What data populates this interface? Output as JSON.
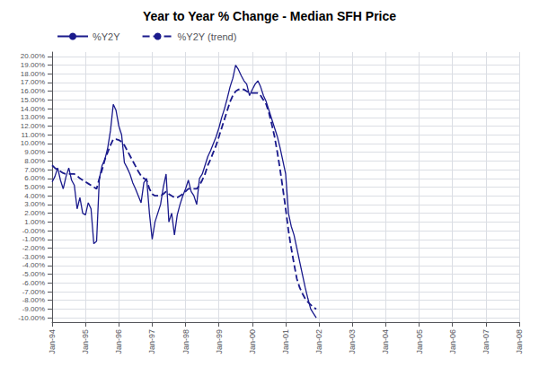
{
  "chart_data": {
    "type": "line",
    "title": "Year to Year % Change - Median SFH Price",
    "categories": [
      "Jan-94",
      null,
      null,
      null,
      null,
      null,
      null,
      null,
      null,
      null,
      null,
      null,
      "Jan-95",
      null,
      null,
      null,
      null,
      null,
      null,
      null,
      null,
      null,
      null,
      null,
      "Jan-96",
      null,
      null,
      null,
      null,
      null,
      null,
      null,
      null,
      null,
      null,
      null,
      "Jan-97",
      null,
      null,
      null,
      null,
      null,
      null,
      null,
      null,
      null,
      null,
      null,
      "Jan-98",
      null,
      null,
      null,
      null,
      null,
      null,
      null,
      null,
      null,
      null,
      null,
      "Jan-99",
      null,
      null,
      null,
      null,
      null,
      null,
      null,
      null,
      null,
      null,
      null,
      "Jan-00",
      null,
      null,
      null,
      null,
      null,
      null,
      null,
      null,
      null,
      null,
      null,
      "Jan-01",
      null,
      null,
      null,
      null,
      null,
      null,
      null,
      null,
      null,
      null,
      null,
      "Jan-02",
      null,
      null,
      null,
      null,
      null,
      null,
      null,
      null,
      null,
      null,
      null,
      "Jan-03",
      null,
      null,
      null,
      null,
      null,
      null,
      null,
      null,
      null,
      null,
      null,
      "Jan-04",
      null,
      null,
      null,
      null,
      null,
      null,
      null,
      null,
      null,
      null,
      null,
      "Jan-05",
      null,
      null,
      null,
      null,
      null,
      null,
      null,
      null,
      null,
      null,
      null,
      "Jan-06",
      null,
      null,
      null,
      null,
      null,
      null,
      null,
      null,
      null,
      null,
      null,
      "Jan-07",
      null,
      null,
      null,
      null,
      null,
      null,
      null,
      null,
      null,
      null,
      null,
      "Jan-08"
    ],
    "series": [
      {
        "name": "%Y2Y",
        "color": "#1a1a8c",
        "line_style": "solid",
        "values": [
          0.056,
          0.062,
          0.072,
          0.058,
          0.048,
          0.062,
          0.072,
          0.058,
          0.052,
          0.025,
          0.038,
          0.02,
          0.018,
          0.032,
          0.025,
          -0.015,
          -0.012,
          0.06,
          0.075,
          0.082,
          0.095,
          0.115,
          0.145,
          0.138,
          0.12,
          0.11,
          0.078,
          0.072,
          0.065,
          0.055,
          0.048,
          0.04,
          0.032,
          0.055,
          0.06,
          0.02,
          -0.01,
          0.01,
          0.02,
          0.03,
          0.05,
          0.065,
          0.01,
          0.02,
          -0.005,
          0.018,
          0.03,
          0.04,
          0.048,
          0.058,
          0.045,
          0.04,
          0.03,
          0.06,
          0.065,
          0.075,
          0.085,
          0.092,
          0.1,
          0.108,
          0.118,
          0.13,
          0.14,
          0.152,
          0.165,
          0.175,
          0.19,
          0.185,
          0.178,
          0.172,
          0.168,
          0.155,
          0.162,
          0.168,
          0.172,
          0.165,
          0.155,
          0.148,
          0.138,
          0.128,
          0.118,
          0.108,
          0.095,
          0.08,
          0.065,
          0.02,
          0.005,
          -0.005,
          -0.02,
          -0.035,
          -0.05,
          -0.065,
          -0.078,
          -0.09,
          -0.095,
          -0.1,
          null,
          null,
          null,
          null,
          null,
          null,
          null,
          null,
          null,
          null,
          null,
          null,
          null,
          null,
          null,
          null,
          null,
          null,
          null,
          null,
          null,
          null,
          null,
          null,
          null,
          null,
          null,
          null,
          null,
          null,
          null,
          null,
          null,
          null,
          null,
          null,
          null,
          null,
          null,
          null,
          null,
          null,
          null,
          null,
          null,
          null,
          null,
          null,
          null,
          null,
          null,
          null,
          null,
          null,
          null,
          null,
          null,
          null,
          null,
          null,
          null,
          null,
          null,
          null,
          null,
          null,
          null,
          null,
          null,
          null,
          null,
          null,
          null
        ]
      },
      {
        "name": "%Y2Y (trend)",
        "color": "#1a1a8c",
        "line_style": "dashed",
        "values": [
          0.075,
          0.072,
          0.07,
          0.068,
          0.066,
          0.065,
          0.065,
          0.065,
          0.065,
          0.063,
          0.06,
          0.058,
          0.056,
          0.054,
          0.052,
          0.05,
          0.048,
          0.06,
          0.07,
          0.082,
          0.09,
          0.098,
          0.105,
          0.105,
          0.104,
          0.102,
          0.098,
          0.092,
          0.086,
          0.08,
          0.074,
          0.068,
          0.063,
          0.06,
          0.058,
          0.048,
          0.042,
          0.04,
          0.04,
          0.04,
          0.042,
          0.045,
          0.042,
          0.04,
          0.038,
          0.038,
          0.04,
          0.042,
          0.045,
          0.048,
          0.048,
          0.048,
          0.048,
          0.052,
          0.058,
          0.065,
          0.075,
          0.082,
          0.09,
          0.098,
          0.108,
          0.118,
          0.128,
          0.138,
          0.148,
          0.155,
          0.16,
          0.162,
          0.162,
          0.162,
          0.16,
          0.158,
          0.158,
          0.158,
          0.158,
          0.155,
          0.15,
          0.145,
          0.135,
          0.122,
          0.108,
          0.09,
          0.07,
          0.048,
          0.025,
          0.0,
          -0.02,
          -0.038,
          -0.055,
          -0.065,
          -0.072,
          -0.078,
          -0.082,
          -0.085,
          -0.088,
          -0.09,
          null,
          null,
          null,
          null,
          null,
          null,
          null,
          null,
          null,
          null,
          null,
          null,
          null,
          null,
          null,
          null,
          null,
          null,
          null,
          null,
          null,
          null,
          null,
          null,
          null,
          null,
          null,
          null,
          null,
          null,
          null,
          null,
          null,
          null,
          null,
          null,
          null,
          null,
          null,
          null,
          null,
          null,
          null,
          null,
          null,
          null,
          null,
          null,
          null,
          null,
          null,
          null,
          null,
          null,
          null,
          null,
          null,
          null,
          null,
          null,
          null,
          null,
          null,
          null,
          null,
          null,
          null,
          null,
          null,
          null,
          null,
          null,
          null
        ]
      }
    ],
    "ylim": [
      -0.105,
      0.205
    ],
    "yticks": [
      {
        "value": -0.1,
        "label": "-10.00%"
      },
      {
        "value": -0.09,
        "label": "-9.00%"
      },
      {
        "value": -0.08,
        "label": "-8.00%"
      },
      {
        "value": -0.07,
        "label": "-7.00%"
      },
      {
        "value": -0.06,
        "label": "-6.00%"
      },
      {
        "value": -0.05,
        "label": "-5.00%"
      },
      {
        "value": -0.04,
        "label": "-4.00%"
      },
      {
        "value": -0.03,
        "label": "-3.00%"
      },
      {
        "value": -0.02,
        "label": "-2.00%"
      },
      {
        "value": -0.01,
        "label": "-1.00%"
      },
      {
        "value": 0,
        "label": "-0.00%"
      },
      {
        "value": 0.01,
        "label": "1.00%"
      },
      {
        "value": 0.02,
        "label": "2.00%"
      },
      {
        "value": 0.03,
        "label": "3.00%"
      },
      {
        "value": 0.04,
        "label": "4.00%"
      },
      {
        "value": 0.05,
        "label": "5.00%"
      },
      {
        "value": 0.06,
        "label": "6.00%"
      },
      {
        "value": 0.07,
        "label": "7.00%"
      },
      {
        "value": 0.08,
        "label": "8.00%"
      },
      {
        "value": 0.09,
        "label": "9.00%"
      },
      {
        "value": 0.1,
        "label": "10.00%"
      },
      {
        "value": 0.11,
        "label": "11.00%"
      },
      {
        "value": 0.12,
        "label": "12.00%"
      },
      {
        "value": 0.13,
        "label": "13.00%"
      },
      {
        "value": 0.14,
        "label": "14.00%"
      },
      {
        "value": 0.15,
        "label": "15.00%"
      },
      {
        "value": 0.16,
        "label": "16.00%"
      },
      {
        "value": 0.17,
        "label": "17.00%"
      },
      {
        "value": 0.18,
        "label": "18.00%"
      },
      {
        "value": 0.19,
        "label": "19.00%"
      },
      {
        "value": 0.2,
        "label": "20.00%"
      }
    ],
    "grid": true,
    "legend": "upper left"
  }
}
